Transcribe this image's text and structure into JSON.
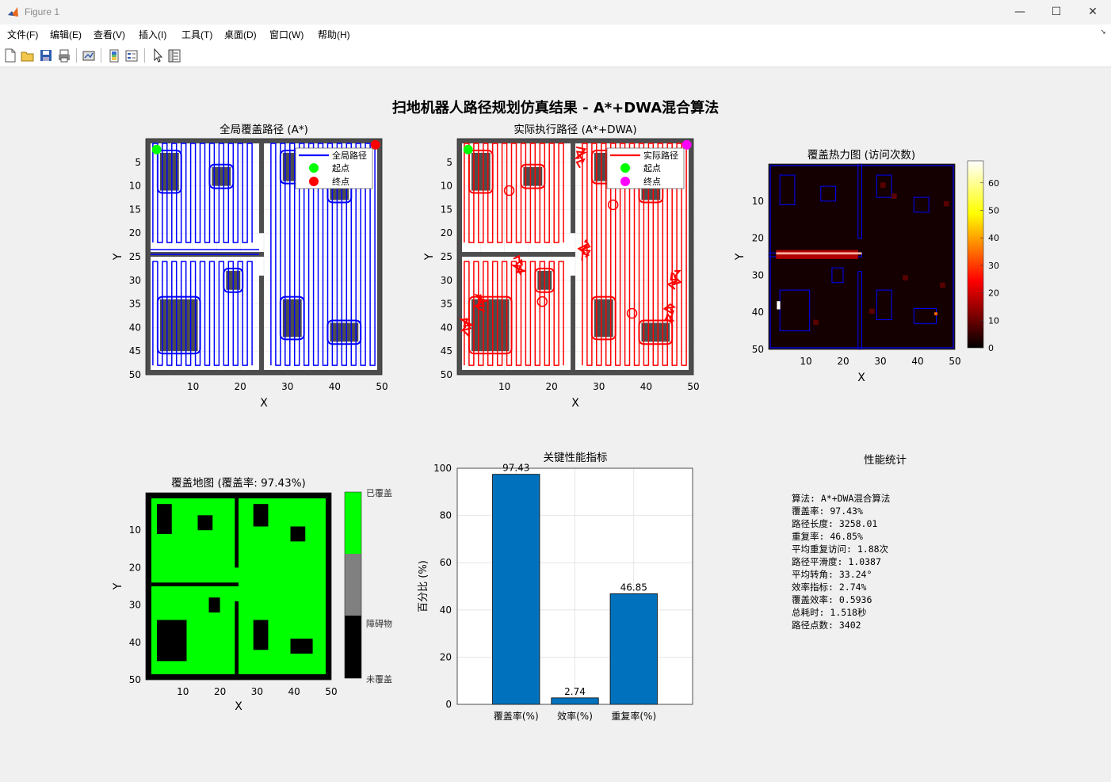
{
  "window": {
    "title": "Figure 1",
    "minimize": "—",
    "maximize": "☐",
    "close": "✕"
  },
  "menu": [
    "文件(F)",
    "编辑(E)",
    "查看(V)",
    "插入(I)",
    "工具(T)",
    "桌面(D)",
    "窗口(W)",
    "帮助(H)"
  ],
  "toolbar": {
    "icons": [
      "new-figure-icon",
      "open-file-icon",
      "save-icon",
      "print-icon",
      "link-plot-icon",
      "colorbar-icon",
      "legend-icon",
      "select-pointer-icon",
      "property-inspector-icon"
    ]
  },
  "figure": {
    "suptitle": "扫地机器人路径规划仿真结果 - A*+DWA混合算法"
  },
  "colors": {
    "global_path": "#0000ff",
    "actual_path": "#ff0000",
    "start": "#00ff00",
    "end_global": "#ff0000",
    "end_actual": "#ff00ff",
    "obstacle": "#4d4d4d",
    "covered": "#00ff00",
    "bar": "#0072bd"
  },
  "maps": {
    "xlim": [
      0,
      50
    ],
    "ylim": [
      0,
      50
    ],
    "x_ticks": [
      10,
      20,
      30,
      40,
      50
    ],
    "y_ticks": [
      5,
      10,
      15,
      20,
      25,
      30,
      35,
      40,
      45,
      50
    ],
    "y_ticks_coarse": [
      10,
      20,
      30,
      40,
      50
    ],
    "obstacles": [
      {
        "x": 3,
        "y": 3,
        "w": 4,
        "h": 8
      },
      {
        "x": 14,
        "y": 6,
        "w": 4,
        "h": 4
      },
      {
        "x": 29,
        "y": 3,
        "w": 4,
        "h": 6
      },
      {
        "x": 39,
        "y": 9,
        "w": 4,
        "h": 4
      },
      {
        "x": 17,
        "y": 28,
        "w": 3,
        "h": 4
      },
      {
        "x": 3,
        "y": 34,
        "w": 8,
        "h": 11
      },
      {
        "x": 29,
        "y": 34,
        "w": 4,
        "h": 8
      },
      {
        "x": 39,
        "y": 39,
        "w": 6,
        "h": 4
      }
    ],
    "walls": [
      {
        "x": 24,
        "y": 0,
        "w": 1,
        "h": 20
      },
      {
        "x": 0,
        "y": 24,
        "w": 25,
        "h": 1
      },
      {
        "x": 24,
        "y": 29,
        "w": 1,
        "h": 21
      }
    ]
  },
  "chart_data": [
    {
      "type": "line",
      "title": "全局覆盖路径 (A*)",
      "xlabel": "X",
      "ylabel": "Y",
      "xlim": [
        0,
        50
      ],
      "ylim": [
        0,
        50
      ],
      "series": [
        {
          "name": "全局路径",
          "values": []
        },
        {
          "name": "起点",
          "x": [
            2
          ],
          "y": [
            2
          ]
        },
        {
          "name": "终点",
          "x": [
            49
          ],
          "y": [
            1
          ]
        }
      ],
      "legend": "top-right"
    },
    {
      "type": "line",
      "title": "实际执行路径 (A*+DWA)",
      "xlabel": "X",
      "ylabel": "Y",
      "xlim": [
        0,
        50
      ],
      "ylim": [
        0,
        50
      ],
      "series": [
        {
          "name": "实际路径",
          "values": []
        },
        {
          "name": "起点",
          "x": [
            2
          ],
          "y": [
            2
          ]
        },
        {
          "name": "终点",
          "x": [
            49
          ],
          "y": [
            1
          ]
        }
      ],
      "legend": "top-right"
    },
    {
      "type": "heatmap",
      "title": "覆盖热力图 (访问次数)",
      "xlabel": "X",
      "ylabel": "Y",
      "xlim": [
        0,
        50
      ],
      "ylim": [
        0,
        50
      ],
      "colorbar_ticks": [
        0,
        10,
        20,
        30,
        40,
        50,
        60
      ],
      "colormap": "hot"
    },
    {
      "type": "heatmap",
      "title": "覆盖地图 (覆盖率: 97.43%)",
      "xlabel": "X",
      "ylabel": "Y",
      "xlim": [
        0,
        50
      ],
      "ylim": [
        0,
        50
      ],
      "colorbar_labels": [
        "已覆盖",
        "障碍物",
        "未覆盖"
      ]
    },
    {
      "type": "bar",
      "title": "关键性能指标",
      "ylabel": "百分比 (%)",
      "categories": [
        "覆盖率(%)",
        "效率(%)",
        "重复率(%)"
      ],
      "values": [
        97.43,
        2.74,
        46.85
      ],
      "value_labels": [
        "97.43",
        "2.74",
        "46.85"
      ],
      "ylim": [
        0,
        100
      ],
      "y_ticks": [
        0,
        20,
        40,
        60,
        80,
        100
      ],
      "grid": true
    }
  ],
  "stats": {
    "title": "性能统计",
    "lines": [
      "算法: A*+DWA混合算法",
      "覆盖率: 97.43%",
      "路径长度: 3258.01",
      "重复率: 46.85%",
      "平均重复访问: 1.88次",
      "路径平滑度: 1.0387",
      "平均转角: 33.24°",
      "效率指标: 2.74%",
      "覆盖效率: 0.5936",
      "总耗时: 1.518秒",
      "路径点数: 3402"
    ]
  }
}
